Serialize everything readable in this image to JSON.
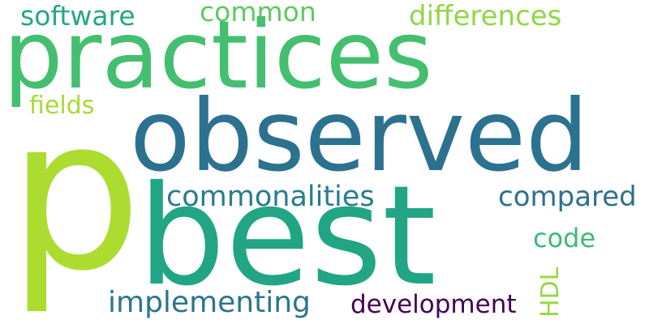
{
  "words": [
    {
      "id": "p",
      "text": "p",
      "color": "#addc30"
    },
    {
      "id": "practices",
      "text": "practices",
      "color": "#44bf70"
    },
    {
      "id": "observed",
      "text": "observed",
      "color": "#2c728e"
    },
    {
      "id": "best",
      "text": "best",
      "color": "#21a585"
    },
    {
      "id": "software",
      "text": "software",
      "color": "#22a785"
    },
    {
      "id": "common",
      "text": "common",
      "color": "#5ec962"
    },
    {
      "id": "differences",
      "text": "differences",
      "color": "#90d743"
    },
    {
      "id": "fields",
      "text": "fields",
      "color": "#a5db36"
    },
    {
      "id": "commonalities",
      "text": "commonalities",
      "color": "#287c8e"
    },
    {
      "id": "compared",
      "text": "compared",
      "color": "#2c718e"
    },
    {
      "id": "code",
      "text": "code",
      "color": "#3bbb75"
    },
    {
      "id": "hdl",
      "text": "HDL",
      "color": "#95d840"
    },
    {
      "id": "implementing",
      "text": "implementing",
      "color": "#2b758e"
    },
    {
      "id": "development",
      "text": "development",
      "color": "#440154"
    }
  ]
}
